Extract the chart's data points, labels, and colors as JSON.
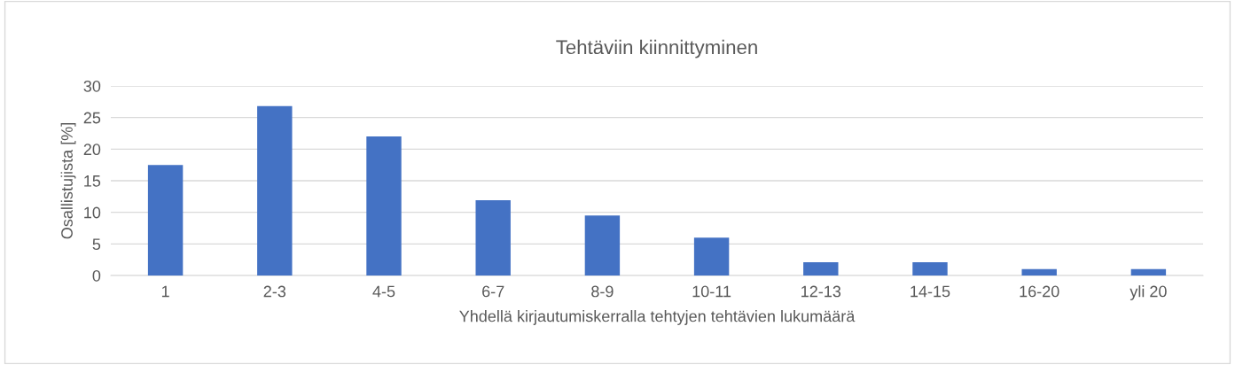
{
  "chart_data": {
    "type": "bar",
    "title": "Tehtäviin kiinnittyminen",
    "xlabel": "Yhdellä kirjautumiskerralla tehtyjen tehtävien lukumäärä",
    "ylabel": "Osallistujista [%]",
    "categories": [
      "1",
      "2-3",
      "4-5",
      "6-7",
      "8-9",
      "10-11",
      "12-13",
      "14-15",
      "16-20",
      "yli 20"
    ],
    "values": [
      17.5,
      26.8,
      22.0,
      11.9,
      9.5,
      6.0,
      2.1,
      2.1,
      1.0,
      1.0
    ],
    "color": "#4472c4",
    "ylim": [
      0,
      30
    ],
    "yticks": [
      0,
      5,
      10,
      15,
      20,
      25,
      30
    ],
    "grid": "y",
    "legend": false
  }
}
